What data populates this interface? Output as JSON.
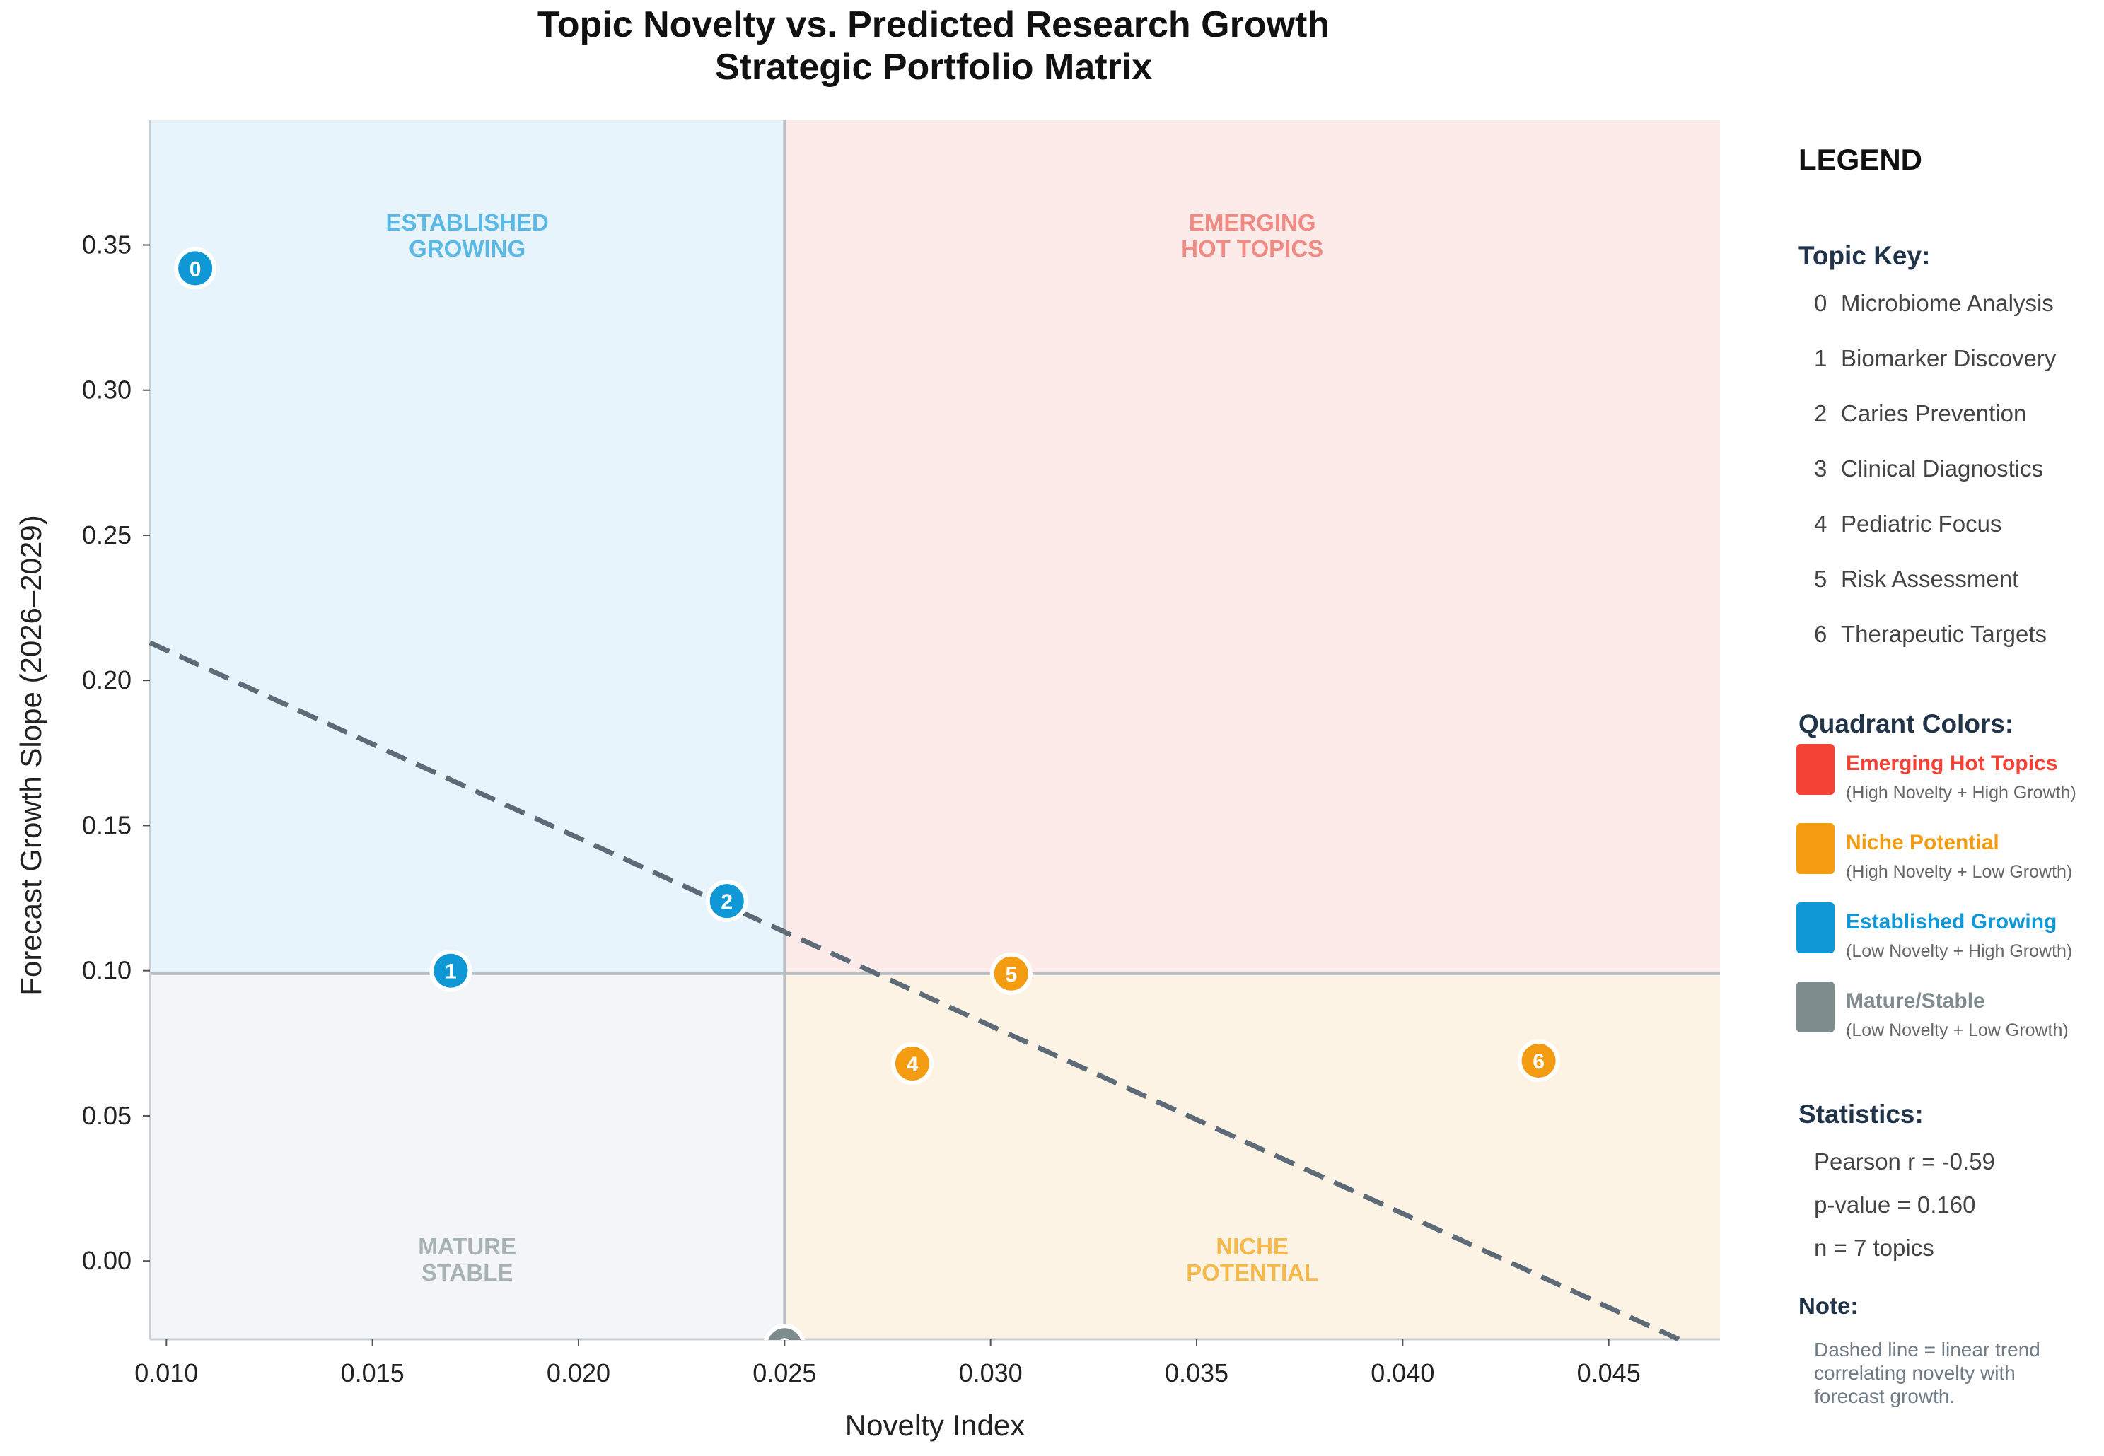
{
  "chart_data": {
    "type": "scatter",
    "title": "Topic Novelty vs. Predicted Research Growth",
    "subtitle": "Strategic Portfolio Matrix",
    "xlabel": "Novelty Index",
    "ylabel": "Forecast Growth Slope (2026–2029)",
    "xlim": [
      0.0096,
      0.0477
    ],
    "ylim": [
      -0.027,
      0.393
    ],
    "x_ticks": [
      0.01,
      0.015,
      0.02,
      0.025,
      0.03,
      0.035,
      0.04,
      0.045
    ],
    "x_tick_labels": [
      "0.010",
      "0.015",
      "0.020",
      "0.025",
      "0.030",
      "0.035",
      "0.040",
      "0.045"
    ],
    "y_ticks": [
      0.0,
      0.05,
      0.1,
      0.15,
      0.2,
      0.25,
      0.3,
      0.35
    ],
    "y_tick_labels": [
      "0.00",
      "0.05",
      "0.10",
      "0.15",
      "0.20",
      "0.25",
      "0.30",
      "0.35"
    ],
    "x_threshold": 0.025,
    "y_threshold": 0.099,
    "trend_line": {
      "x": [
        0.0096,
        0.0467
      ],
      "y": [
        0.213,
        -0.027
      ],
      "style": "dashed",
      "color": "#5d6b78"
    },
    "points": [
      {
        "id": "0",
        "name": "Microbiome Analysis",
        "x": 0.0107,
        "y": 0.342,
        "quadrant": "established"
      },
      {
        "id": "1",
        "name": "Biomarker Discovery",
        "x": 0.0169,
        "y": 0.1,
        "quadrant": "established"
      },
      {
        "id": "2",
        "name": "Caries Prevention",
        "x": 0.0236,
        "y": 0.124,
        "quadrant": "established"
      },
      {
        "id": "3",
        "name": "Clinical Diagnostics",
        "x": 0.025,
        "y": -0.029,
        "quadrant": "mature"
      },
      {
        "id": "4",
        "name": "Pediatric Focus",
        "x": 0.0281,
        "y": 0.068,
        "quadrant": "niche"
      },
      {
        "id": "5",
        "name": "Risk Assessment",
        "x": 0.0305,
        "y": 0.099,
        "quadrant": "niche"
      },
      {
        "id": "6",
        "name": "Therapeutic Targets",
        "x": 0.0433,
        "y": 0.069,
        "quadrant": "niche"
      }
    ],
    "quadrants": {
      "emerging": {
        "label_lines": [
          "EMERGING",
          "HOT TOPICS"
        ],
        "fill": "#fdebea",
        "text": "#f08a82",
        "marker": "#f44336"
      },
      "niche": {
        "label_lines": [
          "NICHE",
          "POTENTIAL"
        ],
        "fill": "#fdf3e4",
        "text": "#f5b84a",
        "marker": "#f39c12"
      },
      "established": {
        "label_lines": [
          "ESTABLISHED",
          "GROWING"
        ],
        "fill": "#e7f4fc",
        "text": "#5bb8e4",
        "marker": "#0f97d6"
      },
      "mature": {
        "label_lines": [
          "MATURE",
          "STABLE"
        ],
        "fill": "#f3f5f7",
        "text": "#a7b3b1",
        "marker": "#7f8c8d"
      }
    }
  },
  "legend": {
    "heading": "LEGEND",
    "topic_key_title": "Topic Key:",
    "quadrant_colors_title": "Quadrant Colors:",
    "quadrant_entries": [
      {
        "name": "Emerging Hot Topics",
        "desc": "(High Novelty + High Growth)",
        "color": "#f44336"
      },
      {
        "name": "Niche Potential",
        "desc": "(High Novelty + Low Growth)",
        "color": "#f39c12"
      },
      {
        "name": "Established Growing",
        "desc": "(Low Novelty + High Growth)",
        "color": "#0f97d6"
      },
      {
        "name": "Mature/Stable",
        "desc": "(Low Novelty + Low Growth)",
        "color": "#7f8c8d"
      }
    ],
    "statistics_title": "Statistics:",
    "statistics": [
      "Pearson r = -0.59",
      "p-value = 0.160",
      "n = 7 topics"
    ],
    "note_title": "Note:",
    "note_lines": [
      "Dashed line = linear trend",
      "correlating novelty with",
      "forecast growth."
    ]
  }
}
